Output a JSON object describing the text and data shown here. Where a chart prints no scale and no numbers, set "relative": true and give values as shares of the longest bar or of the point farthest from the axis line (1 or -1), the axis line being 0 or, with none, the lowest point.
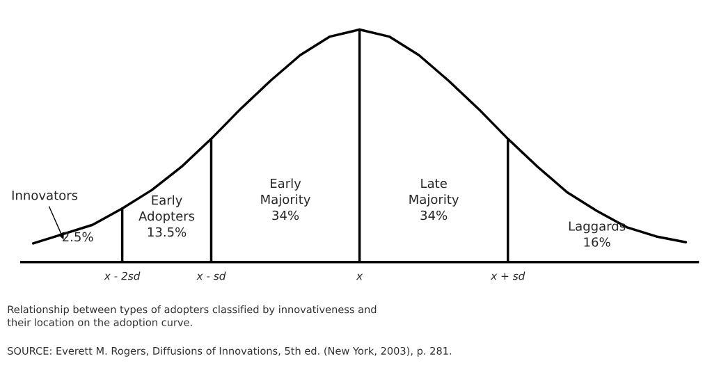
{
  "chart_data": {
    "type": "line",
    "relative": true,
    "categories": [
      null,
      null,
      null,
      "x - 2sd",
      null,
      null,
      "x - sd",
      null,
      null,
      null,
      null,
      "x",
      null,
      null,
      null,
      null,
      "x + sd",
      null,
      null,
      null,
      null,
      null,
      null
    ],
    "series": [
      {
        "color": "#000000",
        "values": [
          0.08,
          0.12,
          0.16,
          0.23,
          0.31,
          0.41,
          0.53,
          0.66,
          0.78,
          0.89,
          0.97,
          1,
          0.97,
          0.89,
          0.78,
          0.66,
          0.53,
          0.41,
          0.3,
          0.22,
          0.15,
          0.11,
          0.085
        ]
      }
    ],
    "ref_lines": [
      {
        "axis": "x",
        "value": "x - 2sd"
      },
      {
        "axis": "x",
        "value": "x - sd"
      },
      {
        "axis": "x",
        "value": "x"
      },
      {
        "axis": "x",
        "value": "x + sd"
      }
    ],
    "annotations": [
      "Innovators",
      "2.5%",
      "Early\nAdopters\n13.5%",
      "Early\nMajority\n34%",
      "Late\nMajority\n34%",
      "Laggards\n16%",
      "Relationship between types of adopters classified by innovativeness and\ntheir location on the adoption curve.",
      "SOURCE: Everett M. Rogers, Diffusions of Innovations, 5th ed. (New York, 2003), p. 281."
    ],
    "grid": false,
    "legend": false,
    "marker": "none",
    "line_style": "solid"
  }
}
